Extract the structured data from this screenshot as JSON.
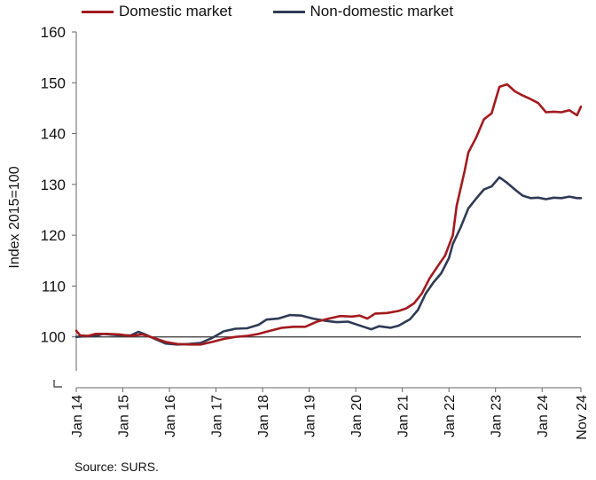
{
  "legend": {
    "domestic": "Domestic market",
    "nondomestic": "Non-domestic market"
  },
  "colors": {
    "domestic": "#a31a1e",
    "nondomestic": "#2f3b55",
    "reference": "#333333"
  },
  "source": "Source: SURS.",
  "chart_data": {
    "type": "line",
    "title": "",
    "ylabel": "Index 2015=100",
    "xlabel": "",
    "ylim": [
      90,
      160
    ],
    "yticks": [
      100,
      110,
      120,
      130,
      140,
      150,
      160
    ],
    "y_broken_axis": true,
    "reference_line": 100,
    "x_ticks": [
      "Jan 14",
      "Jan 15",
      "Jan 16",
      "Jan 17",
      "Jan 18",
      "Jan 19",
      "Jan 20",
      "Jan 21",
      "Jan 22",
      "Jan 23",
      "Jan 24",
      "Nov 24"
    ],
    "x_start": "2014-01",
    "x_end": "2024-11",
    "grid": false,
    "legend_position": "top",
    "series": [
      {
        "name": "Domestic market",
        "points": [
          [
            "2014-01",
            101.2
          ],
          [
            "2014-02",
            100.3
          ],
          [
            "2014-04",
            100.2
          ],
          [
            "2014-06",
            100.6
          ],
          [
            "2014-09",
            100.6
          ],
          [
            "2014-12",
            100.5
          ],
          [
            "2015-03",
            100.2
          ],
          [
            "2015-06",
            100.5
          ],
          [
            "2015-09",
            99.8
          ],
          [
            "2015-12",
            99.0
          ],
          [
            "2016-03",
            98.6
          ],
          [
            "2016-06",
            98.5
          ],
          [
            "2016-09",
            98.5
          ],
          [
            "2016-12",
            99.0
          ],
          [
            "2017-03",
            99.6
          ],
          [
            "2017-06",
            100.0
          ],
          [
            "2017-09",
            100.2
          ],
          [
            "2017-12",
            100.6
          ],
          [
            "2018-03",
            101.2
          ],
          [
            "2018-06",
            101.8
          ],
          [
            "2018-09",
            102.0
          ],
          [
            "2018-12",
            102.0
          ],
          [
            "2019-03",
            103.0
          ],
          [
            "2019-06",
            103.6
          ],
          [
            "2019-09",
            104.1
          ],
          [
            "2019-12",
            104.0
          ],
          [
            "2020-02",
            104.2
          ],
          [
            "2020-04",
            103.6
          ],
          [
            "2020-06",
            104.6
          ],
          [
            "2020-09",
            104.7
          ],
          [
            "2020-12",
            105.1
          ],
          [
            "2021-02",
            105.6
          ],
          [
            "2021-04",
            106.6
          ],
          [
            "2021-06",
            108.5
          ],
          [
            "2021-08",
            111.5
          ],
          [
            "2021-10",
            113.8
          ],
          [
            "2021-12",
            116.0
          ],
          [
            "2022-02",
            120.0
          ],
          [
            "2022-03",
            125.8
          ],
          [
            "2022-05",
            132.5
          ],
          [
            "2022-06",
            136.3
          ],
          [
            "2022-08",
            139.2
          ],
          [
            "2022-10",
            142.8
          ],
          [
            "2022-12",
            144.0
          ],
          [
            "2023-02",
            149.2
          ],
          [
            "2023-04",
            149.7
          ],
          [
            "2023-06",
            148.3
          ],
          [
            "2023-08",
            147.5
          ],
          [
            "2023-10",
            146.8
          ],
          [
            "2023-12",
            146.0
          ],
          [
            "2024-02",
            144.2
          ],
          [
            "2024-04",
            144.3
          ],
          [
            "2024-06",
            144.2
          ],
          [
            "2024-08",
            144.6
          ],
          [
            "2024-10",
            143.6
          ],
          [
            "2024-11",
            145.3
          ]
        ]
      },
      {
        "name": "Non-domestic market",
        "points": [
          [
            "2014-01",
            100.0
          ],
          [
            "2014-03",
            100.1
          ],
          [
            "2014-06",
            100.2
          ],
          [
            "2014-08",
            100.6
          ],
          [
            "2014-12",
            100.3
          ],
          [
            "2015-03",
            100.3
          ],
          [
            "2015-05",
            101.0
          ],
          [
            "2015-07",
            100.4
          ],
          [
            "2015-09",
            99.7
          ],
          [
            "2015-12",
            98.7
          ],
          [
            "2016-03",
            98.5
          ],
          [
            "2016-06",
            98.6
          ],
          [
            "2016-09",
            98.8
          ],
          [
            "2016-12",
            99.8
          ],
          [
            "2017-03",
            101.1
          ],
          [
            "2017-06",
            101.6
          ],
          [
            "2017-09",
            101.7
          ],
          [
            "2017-12",
            102.4
          ],
          [
            "2018-02",
            103.4
          ],
          [
            "2018-05",
            103.6
          ],
          [
            "2018-08",
            104.3
          ],
          [
            "2018-11",
            104.2
          ],
          [
            "2019-02",
            103.6
          ],
          [
            "2019-05",
            103.2
          ],
          [
            "2019-08",
            102.9
          ],
          [
            "2019-11",
            103.0
          ],
          [
            "2020-03",
            102.0
          ],
          [
            "2020-05",
            101.5
          ],
          [
            "2020-07",
            102.1
          ],
          [
            "2020-10",
            101.8
          ],
          [
            "2020-12",
            102.2
          ],
          [
            "2021-03",
            103.5
          ],
          [
            "2021-05",
            105.3
          ],
          [
            "2021-07",
            108.5
          ],
          [
            "2021-09",
            110.7
          ],
          [
            "2021-11",
            112.5
          ],
          [
            "2022-01",
            115.5
          ],
          [
            "2022-02",
            118.3
          ],
          [
            "2022-04",
            121.5
          ],
          [
            "2022-06",
            125.3
          ],
          [
            "2022-08",
            127.2
          ],
          [
            "2022-10",
            129.0
          ],
          [
            "2022-12",
            129.6
          ],
          [
            "2023-02",
            131.4
          ],
          [
            "2023-04",
            130.3
          ],
          [
            "2023-06",
            129.0
          ],
          [
            "2023-08",
            127.8
          ],
          [
            "2023-10",
            127.3
          ],
          [
            "2023-12",
            127.4
          ],
          [
            "2024-02",
            127.1
          ],
          [
            "2024-04",
            127.4
          ],
          [
            "2024-06",
            127.3
          ],
          [
            "2024-08",
            127.6
          ],
          [
            "2024-10",
            127.3
          ],
          [
            "2024-11",
            127.3
          ]
        ]
      }
    ]
  }
}
